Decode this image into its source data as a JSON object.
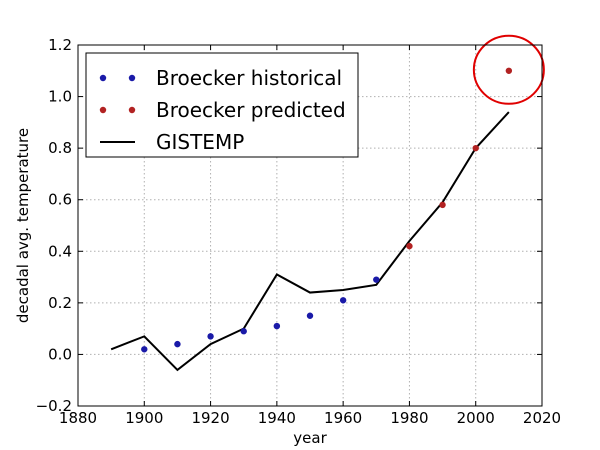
{
  "chart_data": {
    "type": "scatter",
    "title": "",
    "xlabel": "year",
    "ylabel": "decadal avg. temperature",
    "xlim": [
      1880,
      2020
    ],
    "ylim": [
      -0.2,
      1.2
    ],
    "xticks": [
      1880,
      1900,
      1920,
      1940,
      1960,
      1980,
      2000,
      2020
    ],
    "yticks": [
      -0.2,
      0.0,
      0.2,
      0.4,
      0.6,
      0.8,
      1.0,
      1.2
    ],
    "xtick_labels": [
      "1880",
      "1900",
      "1920",
      "1940",
      "1960",
      "1980",
      "2000",
      "2020"
    ],
    "ytick_labels": [
      "−0.2",
      "0.0",
      "0.2",
      "0.4",
      "0.6",
      "0.8",
      "1.0",
      "1.2"
    ],
    "grid": true,
    "legend_position": "top-left",
    "series": [
      {
        "name": "Broecker historical",
        "kind": "scatter",
        "color": "#1a1aa8",
        "x": [
          1900,
          1910,
          1920,
          1930,
          1940,
          1950,
          1960,
          1970
        ],
        "y": [
          0.02,
          0.04,
          0.07,
          0.09,
          0.11,
          0.15,
          0.21,
          0.29
        ]
      },
      {
        "name": "Broecker predicted",
        "kind": "scatter",
        "color": "#b22222",
        "x": [
          1980,
          1990,
          2000,
          2010
        ],
        "y": [
          0.42,
          0.58,
          0.8,
          1.1
        ]
      },
      {
        "name": "GISTEMP",
        "kind": "line",
        "color": "#000000",
        "x": [
          1890,
          1900,
          1910,
          1920,
          1930,
          1940,
          1950,
          1960,
          1970,
          1980,
          1990,
          2000,
          2010
        ],
        "y": [
          0.02,
          0.07,
          -0.06,
          0.04,
          0.1,
          0.31,
          0.24,
          0.25,
          0.27,
          0.44,
          0.59,
          0.8,
          0.94
        ]
      }
    ],
    "annotation": {
      "kind": "circle",
      "color": "#e00000",
      "x": 2010,
      "y": 1.1
    }
  }
}
